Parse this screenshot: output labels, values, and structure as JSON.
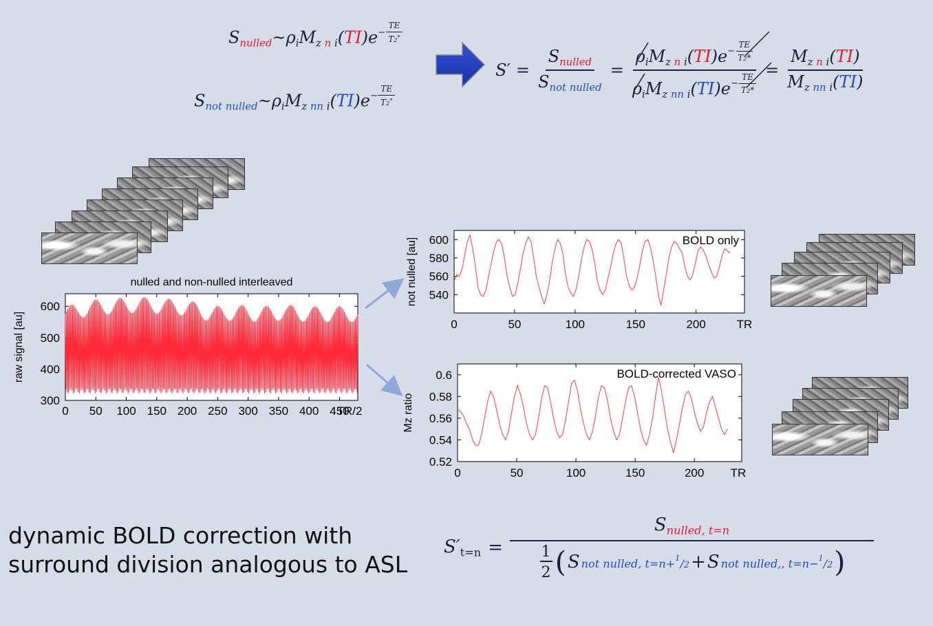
{
  "equations": {
    "s_nulled": {
      "S": "S",
      "sub": "nulled",
      "sim": "~",
      "rho": "ρ",
      "i1": "i",
      "M": "M",
      "z": "z",
      "n": "n",
      "i2": "i",
      "open": "(",
      "TI": "TI",
      "close": ")",
      "e": "e",
      "exp_minus": "−",
      "TE": "TE",
      "T2": "T",
      "T2sub": "2",
      "T2sup": "*"
    },
    "s_not_nulled": {
      "S": "S",
      "sub": "not nulled",
      "sim": "~",
      "rho": "ρ",
      "i1": "i",
      "M": "M",
      "z": "z",
      "nn": "nn",
      "i2": "i",
      "open": "(",
      "TI": "TI",
      "close": ")",
      "e": "e"
    },
    "ratio": {
      "lhs": "S′",
      "eq": "=",
      "num_sub": "nulled",
      "den_sub": "not nulled",
      "Mz": "M",
      "z": "z",
      "n": "n",
      "nn": "nn",
      "i": "i",
      "TI": "TI",
      "e": "e",
      "TE": "TE"
    },
    "dynamic": {
      "lhs": "S′",
      "lhs_sub": "t=n",
      "eq": "=",
      "num_S": "S",
      "num_sub": "nulled, t=n",
      "half_num": "1",
      "half_den": "2",
      "term1_sub": "not nulled, t=n+",
      "plus": "+",
      "term2_sub": "not nulled,, t=n−",
      "frac_num": "1",
      "frac_den": "2"
    }
  },
  "arrow_color": "#1f3fbf",
  "caption": {
    "line1": "dynamic BOLD correction with",
    "line2": "surround division analogous to ASL"
  },
  "chart_data": [
    {
      "type": "line",
      "title": "nulled and non-nulled interleaved",
      "xlabel": "TR/2",
      "ylabel": "raw signal [au]",
      "xlim": [
        0,
        480
      ],
      "ylim": [
        300,
        640
      ],
      "xticks": [
        "0",
        "50",
        "100",
        "150",
        "200",
        "250",
        "300",
        "350",
        "400",
        "450",
        "TR/2"
      ],
      "yticks": [
        "300",
        "400",
        "500",
        "600"
      ],
      "series": [
        {
          "color": "#ff2a3a",
          "description_values": {
            "low_approx": 330,
            "high_approx": [
              600,
              620,
              625,
              630,
              625,
              620,
              600,
              605,
              600,
              605,
              600,
              600,
              600
            ]
          }
        }
      ]
    },
    {
      "type": "line",
      "title": "BOLD only",
      "xlabel": "TR",
      "ylabel": "not nulled [au]",
      "xlim": [
        0,
        240
      ],
      "ylim": [
        520,
        610
      ],
      "xticks": [
        "0",
        "50",
        "100",
        "150",
        "200",
        "TR"
      ],
      "yticks": [
        "540",
        "560",
        "580",
        "600"
      ],
      "series": [
        {
          "color": "#ff3a4a",
          "values": [
            555,
            562,
            560,
            568,
            583,
            598,
            605,
            590,
            572,
            548,
            540,
            538,
            545,
            560,
            575,
            588,
            598,
            600,
            595,
            580,
            560,
            548,
            538,
            540,
            552,
            568,
            585,
            596,
            603,
            598,
            580,
            560,
            548,
            538,
            530,
            540,
            555,
            575,
            590,
            600,
            596,
            585,
            562,
            548,
            542,
            538,
            546,
            560,
            578,
            592,
            600,
            598,
            590,
            575,
            555,
            545,
            540,
            545,
            558,
            570,
            585,
            595,
            600,
            596,
            580,
            560,
            550,
            545,
            548,
            558,
            572,
            588,
            598,
            600,
            592,
            578,
            560,
            540,
            528,
            545,
            562,
            580,
            592,
            598,
            596,
            590,
            586,
            570,
            560,
            556,
            562,
            575,
            588,
            592,
            588,
            582,
            572,
            565,
            558,
            560,
            570,
            582,
            590,
            588,
            585
          ]
        }
      ]
    },
    {
      "type": "line",
      "title": "BOLD-corrected VASO",
      "xlabel": "TR",
      "ylabel": "Mz ratio",
      "xlim": [
        0,
        240
      ],
      "ylim": [
        0.52,
        0.61
      ],
      "xticks": [
        "0",
        "50",
        "100",
        "150",
        "200",
        "TR"
      ],
      "yticks": [
        "0.52",
        "0.54",
        "0.56",
        "0.58",
        "0.6"
      ],
      "series": [
        {
          "color": "#ff3a4a",
          "values": [
            0.568,
            0.566,
            0.562,
            0.555,
            0.55,
            0.54,
            0.535,
            0.535,
            0.545,
            0.56,
            0.575,
            0.585,
            0.58,
            0.568,
            0.555,
            0.545,
            0.54,
            0.548,
            0.565,
            0.58,
            0.59,
            0.582,
            0.57,
            0.555,
            0.545,
            0.54,
            0.545,
            0.56,
            0.578,
            0.59,
            0.588,
            0.575,
            0.56,
            0.548,
            0.542,
            0.545,
            0.558,
            0.575,
            0.592,
            0.595,
            0.585,
            0.568,
            0.555,
            0.545,
            0.54,
            0.548,
            0.562,
            0.58,
            0.59,
            0.588,
            0.576,
            0.56,
            0.548,
            0.54,
            0.545,
            0.56,
            0.575,
            0.588,
            0.59,
            0.58,
            0.565,
            0.55,
            0.54,
            0.535,
            0.545,
            0.56,
            0.58,
            0.598,
            0.585,
            0.568,
            0.55,
            0.538,
            0.528,
            0.54,
            0.555,
            0.57,
            0.582,
            0.585,
            0.578,
            0.565,
            0.555,
            0.548,
            0.552,
            0.565,
            0.575,
            0.58,
            0.57,
            0.56,
            0.55,
            0.545,
            0.55
          ]
        }
      ]
    }
  ]
}
